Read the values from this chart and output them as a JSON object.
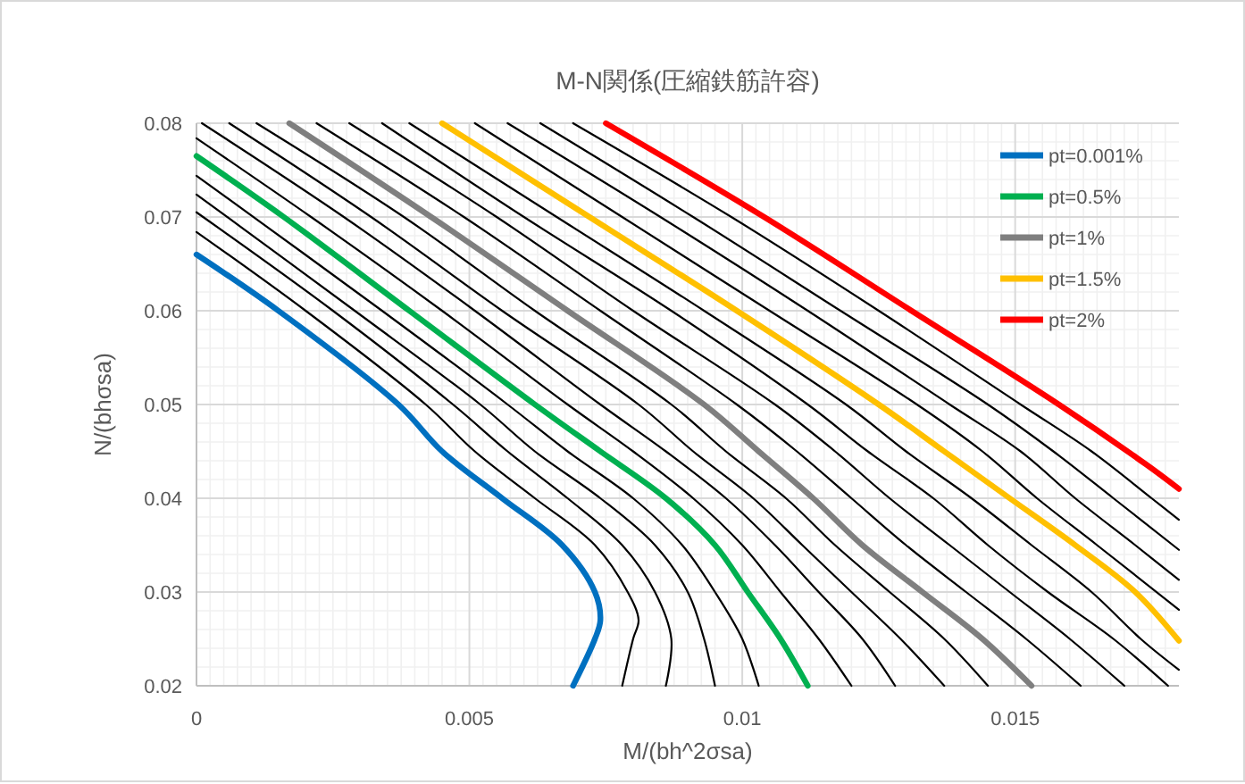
{
  "chart_data": {
    "type": "line",
    "title": "M-N関係(圧縮鉄筋許容)",
    "xlabel": "M/(bh^2σsa)",
    "ylabel": "N/(bhσsa)",
    "xlim": [
      0,
      0.018
    ],
    "xticks": [
      0,
      0.005,
      0.01,
      0.015
    ],
    "ylim": [
      0.02,
      0.08
    ],
    "yticks": [
      0.02,
      0.03,
      0.04,
      0.05,
      0.06,
      0.07,
      0.08
    ],
    "grid": true,
    "legend": "top right",
    "marker": "none",
    "line_style": "solid",
    "series": [
      {
        "name": "pt=0.001%",
        "color": "#0070c0",
        "x": [
          0,
          0.0015,
          0.0037,
          0.0045,
          0.0056,
          0.0067,
          0.0073,
          0.0074,
          0.0073,
          0.0069
        ],
        "values": [
          0.066,
          0.06,
          0.05,
          0.045,
          0.04,
          0.035,
          0.03,
          0.027,
          0.025,
          0.02
        ]
      },
      {
        "color": "#000000",
        "x": [
          0,
          0.002,
          0.0042,
          0.0051,
          0.0062,
          0.0073,
          0.0079,
          0.0081,
          0.008,
          0.0078
        ],
        "values": [
          0.0684,
          0.06,
          0.05,
          0.045,
          0.04,
          0.035,
          0.03,
          0.027,
          0.025,
          0.02
        ]
      },
      {
        "color": "#000000",
        "x": [
          0,
          0.0025,
          0.0047,
          0.0057,
          0.0068,
          0.0078,
          0.0084,
          0.0087,
          0.0086
        ],
        "values": [
          0.0705,
          0.06,
          0.05,
          0.045,
          0.04,
          0.035,
          0.03,
          0.025,
          0.02
        ]
      },
      {
        "color": "#000000",
        "x": [
          0,
          0.0029,
          0.0052,
          0.0062,
          0.0074,
          0.0084,
          0.009,
          0.0093,
          0.0095
        ],
        "values": [
          0.0724,
          0.06,
          0.05,
          0.045,
          0.04,
          0.035,
          0.03,
          0.025,
          0.02
        ]
      },
      {
        "color": "#000000",
        "x": [
          0,
          0.0034,
          0.0057,
          0.0068,
          0.008,
          0.0089,
          0.0095,
          0.01,
          0.0103
        ],
        "values": [
          0.0744,
          0.06,
          0.05,
          0.045,
          0.04,
          0.035,
          0.03,
          0.025,
          0.02
        ]
      },
      {
        "name": "pt=0.5%",
        "color": "#00b050",
        "x": [
          0,
          0.0016,
          0.0039,
          0.0062,
          0.0074,
          0.0086,
          0.0095,
          0.0101,
          0.0107,
          0.0112
        ],
        "values": [
          0.0765,
          0.07,
          0.06,
          0.05,
          0.045,
          0.04,
          0.035,
          0.03,
          0.025,
          0.02
        ]
      },
      {
        "color": "#000000",
        "x": [
          0,
          0.0021,
          0.0045,
          0.0068,
          0.008,
          0.0091,
          0.01,
          0.0107,
          0.0114,
          0.012
        ],
        "values": [
          0.0784,
          0.07,
          0.06,
          0.05,
          0.045,
          0.04,
          0.035,
          0.03,
          0.025,
          0.02
        ]
      },
      {
        "color": "#000000",
        "x": [
          0.0001,
          0.0027,
          0.0051,
          0.0074,
          0.0086,
          0.0097,
          0.0106,
          0.0114,
          0.0122,
          0.0128
        ],
        "values": [
          0.08,
          0.07,
          0.06,
          0.05,
          0.045,
          0.04,
          0.035,
          0.03,
          0.025,
          0.02
        ]
      },
      {
        "color": "#000000",
        "x": [
          0.0006,
          0.0032,
          0.0056,
          0.0081,
          0.0091,
          0.0102,
          0.0111,
          0.012,
          0.0129,
          0.0137
        ],
        "values": [
          0.08,
          0.07,
          0.06,
          0.05,
          0.045,
          0.04,
          0.035,
          0.03,
          0.025,
          0.02
        ]
      },
      {
        "color": "#000000",
        "x": [
          0.0011,
          0.0038,
          0.0062,
          0.0087,
          0.0097,
          0.0108,
          0.0117,
          0.0127,
          0.0137,
          0.0145
        ],
        "values": [
          0.08,
          0.07,
          0.06,
          0.05,
          0.045,
          0.04,
          0.035,
          0.03,
          0.025,
          0.02
        ]
      },
      {
        "name": "pt=1%",
        "color": "#7f7f7f",
        "x": [
          0.0017,
          0.0043,
          0.0068,
          0.0093,
          0.0103,
          0.0113,
          0.0122,
          0.0133,
          0.0144,
          0.0153
        ],
        "values": [
          0.08,
          0.07,
          0.06,
          0.05,
          0.045,
          0.04,
          0.035,
          0.03,
          0.025,
          0.02
        ]
      },
      {
        "color": "#000000",
        "x": [
          0.0022,
          0.0049,
          0.0074,
          0.0099,
          0.011,
          0.012,
          0.013,
          0.0141,
          0.0152,
          0.0162
        ],
        "values": [
          0.08,
          0.07,
          0.06,
          0.05,
          0.045,
          0.04,
          0.035,
          0.03,
          0.025,
          0.02
        ]
      },
      {
        "color": "#000000",
        "x": [
          0.0028,
          0.0055,
          0.008,
          0.0106,
          0.0117,
          0.0127,
          0.0138,
          0.0149,
          0.016,
          0.017
        ],
        "values": [
          0.08,
          0.07,
          0.06,
          0.05,
          0.045,
          0.04,
          0.035,
          0.03,
          0.025,
          0.02
        ]
      },
      {
        "color": "#000000",
        "x": [
          0.0034,
          0.006,
          0.0087,
          0.0112,
          0.0123,
          0.0135,
          0.0145,
          0.0156,
          0.0168,
          0.0178
        ],
        "values": [
          0.08,
          0.07,
          0.06,
          0.05,
          0.045,
          0.04,
          0.035,
          0.03,
          0.025,
          0.02
        ]
      },
      {
        "color": "#000000",
        "x": [
          0.0039,
          0.0066,
          0.0093,
          0.0119,
          0.013,
          0.0142,
          0.0153,
          0.0164,
          0.0173,
          0.018
        ],
        "values": [
          0.08,
          0.07,
          0.06,
          0.05,
          0.045,
          0.04,
          0.035,
          0.03,
          0.025,
          0.0217
        ]
      },
      {
        "name": "pt=1.5%",
        "color": "#ffc000",
        "x": [
          0.0045,
          0.0072,
          0.0099,
          0.0125,
          0.0137,
          0.0149,
          0.0161,
          0.0172,
          0.018
        ],
        "values": [
          0.08,
          0.07,
          0.06,
          0.05,
          0.045,
          0.04,
          0.035,
          0.03,
          0.0248
        ]
      },
      {
        "color": "#000000",
        "x": [
          0.0051,
          0.0078,
          0.0105,
          0.0132,
          0.0144,
          0.0154,
          0.0165,
          0.018
        ],
        "values": [
          0.08,
          0.07,
          0.06,
          0.05,
          0.045,
          0.04,
          0.035,
          0.0281
        ]
      },
      {
        "color": "#000000",
        "x": [
          0.0057,
          0.0085,
          0.0112,
          0.0138,
          0.0151,
          0.0161,
          0.0172,
          0.018
        ],
        "values": [
          0.08,
          0.07,
          0.06,
          0.05,
          0.045,
          0.04,
          0.035,
          0.0313
        ]
      },
      {
        "color": "#000000",
        "x": [
          0.0063,
          0.0091,
          0.0118,
          0.0145,
          0.0157,
          0.0168,
          0.018
        ],
        "values": [
          0.08,
          0.07,
          0.06,
          0.05,
          0.045,
          0.04,
          0.0345
        ]
      },
      {
        "color": "#000000",
        "x": [
          0.0069,
          0.0098,
          0.0125,
          0.0151,
          0.0164,
          0.0175,
          0.018
        ],
        "values": [
          0.08,
          0.07,
          0.06,
          0.05,
          0.045,
          0.04,
          0.0377
        ]
      },
      {
        "name": "pt=2%",
        "color": "#ff0000",
        "x": [
          0.0075,
          0.0104,
          0.0131,
          0.0158,
          0.0174,
          0.018
        ],
        "values": [
          0.08,
          0.07,
          0.06,
          0.05,
          0.0436,
          0.041
        ]
      }
    ]
  }
}
